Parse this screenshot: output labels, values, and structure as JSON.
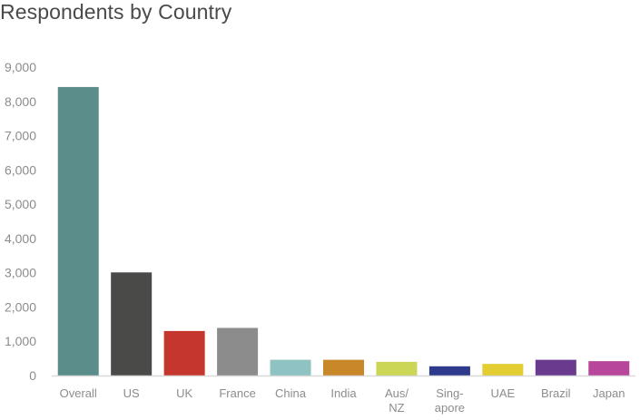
{
  "chart_data": {
    "type": "bar",
    "title": "Respondents by Country",
    "xlabel": "",
    "ylabel": "",
    "ylim": [
      0,
      9000
    ],
    "y_ticks": [
      "0",
      "1,000",
      "2,000",
      "3,000",
      "4,000",
      "5,000",
      "6,000",
      "7,000",
      "8,000",
      "9,000"
    ],
    "y_tick_values": [
      0,
      1000,
      2000,
      3000,
      4000,
      5000,
      6000,
      7000,
      8000,
      9000
    ],
    "grid": false,
    "legend": "none",
    "categories": [
      "Overall",
      "US",
      "UK",
      "France",
      "China",
      "India",
      "Aus/ NZ",
      "Sing- apore",
      "UAE",
      "Brazil",
      "Japan"
    ],
    "category_lines": [
      [
        "Overall"
      ],
      [
        "US"
      ],
      [
        "UK"
      ],
      [
        "France"
      ],
      [
        "China"
      ],
      [
        "India"
      ],
      [
        "Aus/",
        "NZ"
      ],
      [
        "Sing-",
        "apore"
      ],
      [
        "UAE"
      ],
      [
        "Brazil"
      ],
      [
        "Japan"
      ]
    ],
    "values": [
      8420,
      3010,
      1300,
      1390,
      460,
      460,
      400,
      270,
      340,
      460,
      420
    ],
    "colors": [
      "#5b8e8b",
      "#4a4a48",
      "#c5372e",
      "#8c8c8c",
      "#8fc3c3",
      "#c8882a",
      "#cbd657",
      "#2e3a8c",
      "#e3cd30",
      "#6a3a8e",
      "#b8479b"
    ],
    "axis_color": "#d9d9d9",
    "text_color": "#8c8c8c"
  }
}
